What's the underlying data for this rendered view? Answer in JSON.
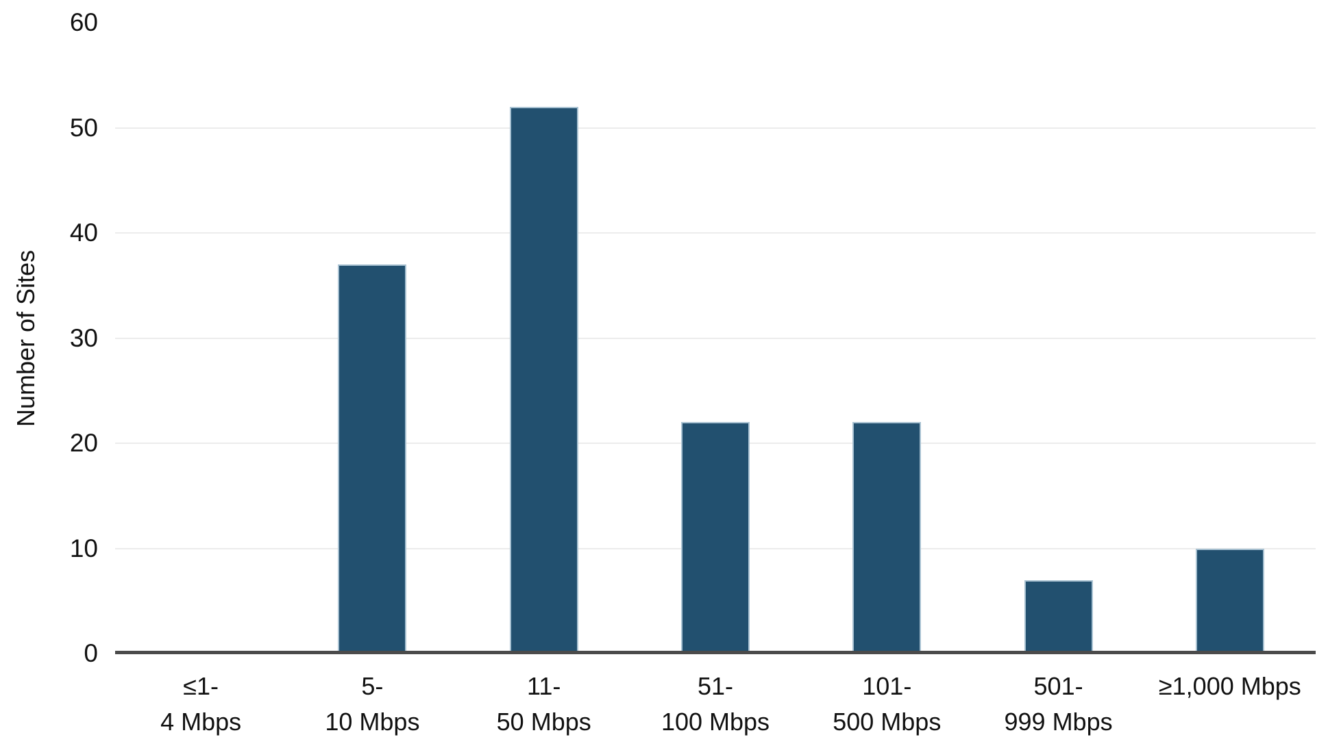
{
  "chart_data": {
    "type": "bar",
    "title": "",
    "xlabel": "",
    "ylabel": "Number of Sites",
    "ylim": [
      0,
      60
    ],
    "yticks": [
      0,
      10,
      20,
      30,
      40,
      50,
      60
    ],
    "gridlines": [
      10,
      20,
      30,
      40,
      50
    ],
    "grid": "horizontal-only",
    "legend": "none",
    "categories": [
      {
        "line1": "≤1-",
        "line2": "4 Mbps"
      },
      {
        "line1": "5-",
        "line2": "10 Mbps"
      },
      {
        "line1": "11-",
        "line2": "50 Mbps"
      },
      {
        "line1": "51-",
        "line2": "100 Mbps"
      },
      {
        "line1": "101-",
        "line2": "500 Mbps"
      },
      {
        "line1": "501-",
        "line2": "999 Mbps"
      },
      {
        "line1": "≥1,000 Mbps",
        "line2": ""
      }
    ],
    "values": [
      0,
      37,
      52,
      22,
      22,
      7,
      10
    ],
    "colors": {
      "bar_fill": "#22506F",
      "bar_stroke": "#A9C2D2",
      "gridline": "#ECECEC",
      "axis_line": "#4B4B4B",
      "text": "#111111",
      "background": "#FFFFFF"
    }
  }
}
